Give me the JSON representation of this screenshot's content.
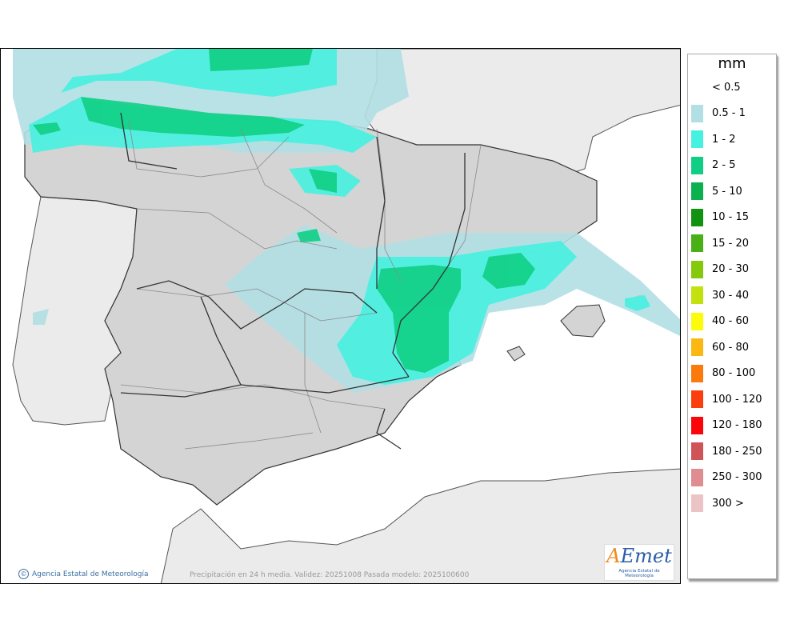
{
  "legend": {
    "unit": "mm",
    "items": [
      {
        "label": "< 0.5",
        "color": "#ffffff"
      },
      {
        "label": "0.5 - 1",
        "color": "#b1dfe4"
      },
      {
        "label": "1 - 2",
        "color": "#47f1e0"
      },
      {
        "label": "2 - 5",
        "color": "#10cf85"
      },
      {
        "label": "5 - 10",
        "color": "#0bb14e"
      },
      {
        "label": "10 - 15",
        "color": "#109310"
      },
      {
        "label": "15 - 20",
        "color": "#49b015"
      },
      {
        "label": "20 - 30",
        "color": "#84c90c"
      },
      {
        "label": "30 - 40",
        "color": "#c2e10e"
      },
      {
        "label": "40 - 60",
        "color": "#fbfb0a"
      },
      {
        "label": "60 - 80",
        "color": "#fbb813"
      },
      {
        "label": "80 - 100",
        "color": "#fb7a0e"
      },
      {
        "label": "100 - 120",
        "color": "#fb3e0d"
      },
      {
        "label": "120 - 180",
        "color": "#fb0608"
      },
      {
        "label": "180 - 250",
        "color": "#cf5457"
      },
      {
        "label": "250 - 300",
        "color": "#df8d90"
      },
      {
        "label": "300 >",
        "color": "#edc4c6"
      }
    ]
  },
  "footer": {
    "credit": "Agencia Estatal de Meteorología",
    "validity": "Precipitación en 24 h media. Validez: 20251008 Pasada modelo: 2025100600"
  },
  "logo": {
    "mark_a": "A",
    "mark_rest": "Emet",
    "subtitle": "Agencia Estatal de Meteorología"
  },
  "colors": {
    "sea": "#ffffff",
    "land_spain": "#d4d4d4",
    "land_other": "#ebebeb",
    "region_border": "#8a8a8a",
    "coast_border": "#333333"
  }
}
